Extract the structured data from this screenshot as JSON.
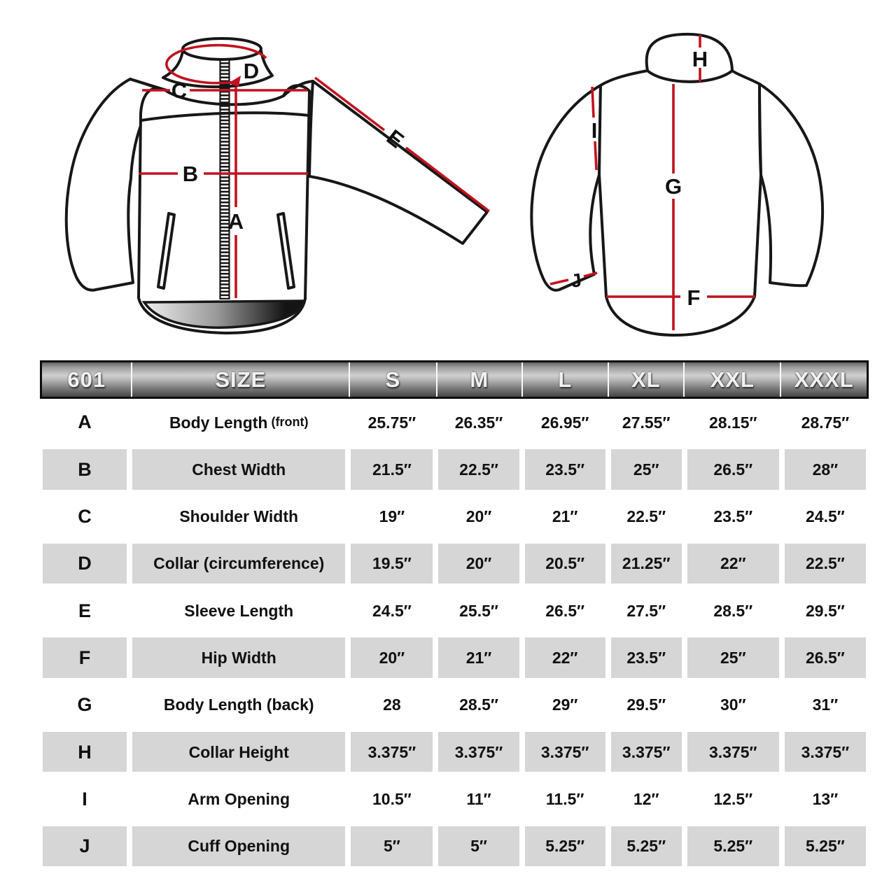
{
  "title": "Jacket size chart 601",
  "colors": {
    "measure_line_red": "#c1121f",
    "outline_black": "#171717",
    "row_shade_gray": "#d6d6d6",
    "header_text": "#f1f1f1",
    "hem_gradient_start": "#e6e6e6",
    "hem_gradient_end": "#0d0d0d"
  },
  "diagram": {
    "labels": {
      "A": "A",
      "B": "B",
      "C": "C",
      "D": "D",
      "E": "E",
      "F": "F",
      "G": "G",
      "H": "H",
      "I": "I",
      "J": "J"
    }
  },
  "table": {
    "model": "601",
    "header": [
      "601",
      "SIZE",
      "S",
      "M",
      "L",
      "XL",
      "XXL",
      "XXXL"
    ],
    "rows": [
      {
        "letter": "A",
        "label": "Body Length",
        "note": "(front)",
        "shaded": false,
        "values": [
          "25.75″",
          "26.35″",
          "26.95″",
          "27.55″",
          "28.15″",
          "28.75″"
        ]
      },
      {
        "letter": "B",
        "label": "Chest Width",
        "note": "",
        "shaded": true,
        "values": [
          "21.5″",
          "22.5″",
          "23.5″",
          "25″",
          "26.5″",
          "28″"
        ]
      },
      {
        "letter": "C",
        "label": "Shoulder Width",
        "note": "",
        "shaded": false,
        "values": [
          "19″",
          "20″",
          "21″",
          "22.5″",
          "23.5″",
          "24.5″"
        ]
      },
      {
        "letter": "D",
        "label": "Collar (circumference)",
        "note": "",
        "shaded": true,
        "values": [
          "19.5″",
          "20″",
          "20.5″",
          "21.25″",
          "22″",
          "22.5″"
        ]
      },
      {
        "letter": "E",
        "label": "Sleeve Length",
        "note": "",
        "shaded": false,
        "values": [
          "24.5″",
          "25.5″",
          "26.5″",
          "27.5″",
          "28.5″",
          "29.5″"
        ]
      },
      {
        "letter": "F",
        "label": "Hip Width",
        "note": "",
        "shaded": true,
        "values": [
          "20″",
          "21″",
          "22″",
          "23.5″",
          "25″",
          "26.5″"
        ]
      },
      {
        "letter": "G",
        "label": "Body Length (back)",
        "note": "",
        "shaded": false,
        "values": [
          "28",
          "28.5″",
          "29″",
          "29.5″",
          "30″",
          "31″"
        ]
      },
      {
        "letter": "H",
        "label": "Collar Height",
        "note": "",
        "shaded": true,
        "values": [
          "3.375″",
          "3.375″",
          "3.375″",
          "3.375″",
          "3.375″",
          "3.375″"
        ]
      },
      {
        "letter": "I",
        "label": "Arm Opening",
        "note": "",
        "shaded": false,
        "values": [
          "10.5″",
          "11″",
          "11.5″",
          "12″",
          "12.5″",
          "13″"
        ]
      },
      {
        "letter": "J",
        "label": "Cuff Opening",
        "note": "",
        "shaded": true,
        "values": [
          "5″",
          "5″",
          "5.25″",
          "5.25″",
          "5.25″",
          "5.25″"
        ]
      }
    ]
  }
}
